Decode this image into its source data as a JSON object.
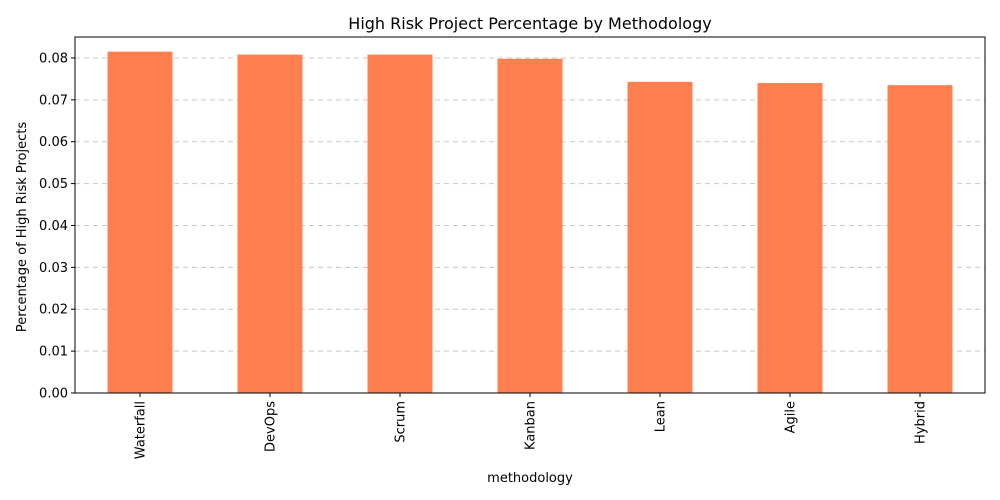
{
  "chart_data": {
    "type": "bar",
    "title": "High Risk Project Percentage by Methodology",
    "xlabel": "methodology",
    "ylabel": "Percentage of High Risk Projects",
    "categories": [
      "Waterfall",
      "DevOps",
      "Scrum",
      "Kanban",
      "Lean",
      "Agile",
      "Hybrid"
    ],
    "values": [
      0.0815,
      0.0808,
      0.0808,
      0.0798,
      0.0743,
      0.074,
      0.0735
    ],
    "ylim": [
      0,
      0.085
    ],
    "yticks": [
      "0.00",
      "0.01",
      "0.02",
      "0.03",
      "0.04",
      "0.05",
      "0.06",
      "0.07",
      "0.08"
    ],
    "grid": "y-dashed",
    "legend": "none",
    "colors": {
      "bar": "#ff7f50",
      "grid": "#c8c8c8",
      "axis": "#000000"
    }
  }
}
